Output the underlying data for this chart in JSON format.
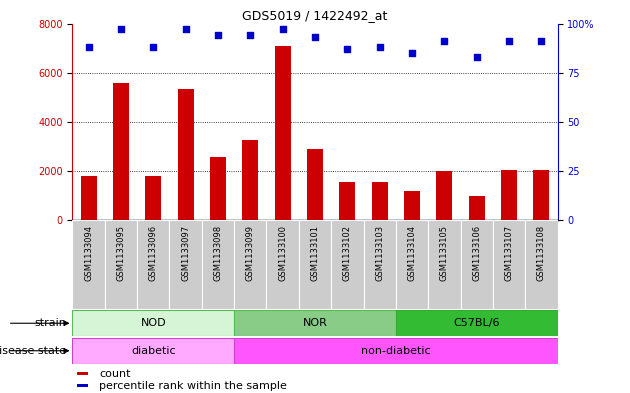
{
  "title": "GDS5019 / 1422492_at",
  "samples": [
    "GSM1133094",
    "GSM1133095",
    "GSM1133096",
    "GSM1133097",
    "GSM1133098",
    "GSM1133099",
    "GSM1133100",
    "GSM1133101",
    "GSM1133102",
    "GSM1133103",
    "GSM1133104",
    "GSM1133105",
    "GSM1133106",
    "GSM1133107",
    "GSM1133108"
  ],
  "counts": [
    1800,
    5600,
    1800,
    5350,
    2550,
    3250,
    7100,
    2900,
    1550,
    1550,
    1200,
    2000,
    1000,
    2050,
    2050
  ],
  "percentiles": [
    88,
    97,
    88,
    97,
    94,
    94,
    97,
    93,
    87,
    88,
    85,
    91,
    83,
    91,
    91
  ],
  "bar_color": "#cc0000",
  "dot_color": "#0000cc",
  "ylim_left": [
    0,
    8000
  ],
  "ylim_right": [
    0,
    100
  ],
  "yticks_left": [
    0,
    2000,
    4000,
    6000,
    8000
  ],
  "yticks_right": [
    0,
    25,
    50,
    75,
    100
  ],
  "strain_groups": [
    {
      "label": "NOD",
      "start": 0,
      "end": 4,
      "color": "#d6f5d6",
      "border_color": "#55bb55"
    },
    {
      "label": "NOR",
      "start": 5,
      "end": 9,
      "color": "#88cc88",
      "border_color": "#55bb55"
    },
    {
      "label": "C57BL/6",
      "start": 10,
      "end": 14,
      "color": "#33bb33",
      "border_color": "#33aa33"
    }
  ],
  "disease_groups": [
    {
      "label": "diabetic",
      "start": 0,
      "end": 4,
      "color": "#ffaaff",
      "border_color": "#cc44cc"
    },
    {
      "label": "non-diabetic",
      "start": 5,
      "end": 14,
      "color": "#ff55ff",
      "border_color": "#cc44cc"
    }
  ],
  "legend_items": [
    {
      "label": "count",
      "color": "#cc0000"
    },
    {
      "label": "percentile rank within the sample",
      "color": "#0000cc"
    }
  ],
  "tick_bg_color": "#cccccc",
  "grid_color": "#000000",
  "label_fontsize": 8,
  "tick_fontsize": 7
}
